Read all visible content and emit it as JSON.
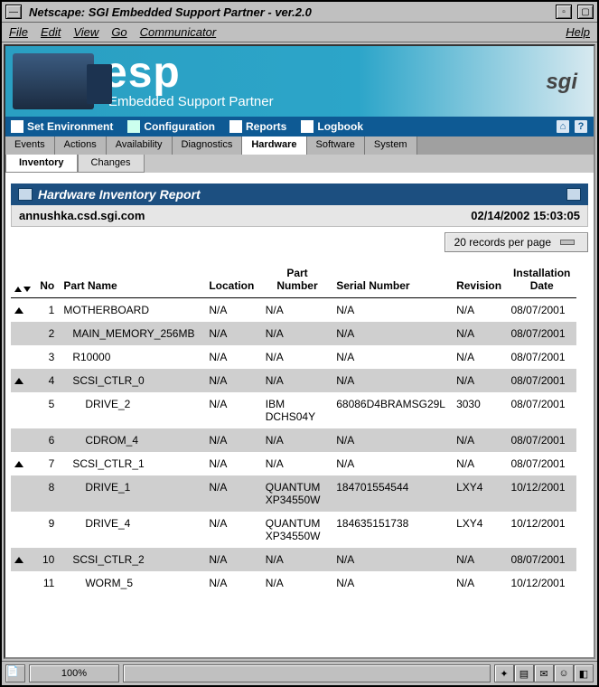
{
  "window": {
    "title": "Netscape: SGI Embedded Support Partner - ver.2.0"
  },
  "menubar": {
    "items": [
      "File",
      "Edit",
      "View",
      "Go",
      "Communicator"
    ],
    "help": "Help"
  },
  "banner": {
    "brand_big": "esp",
    "brand_sub": "Embedded Support Partner",
    "vendor": "sgi"
  },
  "toolbar": {
    "set_env": "Set Environment",
    "config": "Configuration",
    "reports": "Reports",
    "logbook": "Logbook"
  },
  "tabs": {
    "row1": [
      "Events",
      "Actions",
      "Availability",
      "Diagnostics",
      "Hardware",
      "Software",
      "System"
    ],
    "row1_active": 4,
    "row2": [
      "Inventory",
      "Changes"
    ],
    "row2_active": 0
  },
  "report": {
    "title": "Hardware Inventory Report",
    "host": "annushka.csd.sgi.com",
    "timestamp": "02/14/2002 15:03:05",
    "pager": "20 records per page"
  },
  "table": {
    "columns": [
      "No",
      "Part Name",
      "Location",
      "Part Number",
      "Serial Number",
      "Revision",
      "Installation Date"
    ],
    "rows": [
      {
        "collapse": true,
        "no": "1",
        "part": "MOTHERBOARD",
        "indent": 0,
        "loc": "N/A",
        "pn": "N/A",
        "sn": "N/A",
        "rev": "N/A",
        "date": "08/07/2001",
        "cls": "white"
      },
      {
        "collapse": false,
        "no": "2",
        "part": "MAIN_MEMORY_256MB",
        "indent": 1,
        "loc": "N/A",
        "pn": "N/A",
        "sn": "N/A",
        "rev": "N/A",
        "date": "08/07/2001",
        "cls": "gray"
      },
      {
        "collapse": false,
        "no": "3",
        "part": "R10000",
        "indent": 1,
        "loc": "N/A",
        "pn": "N/A",
        "sn": "N/A",
        "rev": "N/A",
        "date": "08/07/2001",
        "cls": "white"
      },
      {
        "collapse": true,
        "no": "4",
        "part": "SCSI_CTLR_0",
        "indent": 1,
        "loc": "N/A",
        "pn": "N/A",
        "sn": "N/A",
        "rev": "N/A",
        "date": "08/07/2001",
        "cls": "gray"
      },
      {
        "collapse": false,
        "no": "5",
        "part": "DRIVE_2",
        "indent": 2,
        "loc": "N/A",
        "pn": "IBM DCHS04Y",
        "sn": "68086D4BRAMSG29L",
        "rev": "3030",
        "date": "08/07/2001",
        "cls": "white"
      },
      {
        "collapse": false,
        "no": "6",
        "part": "CDROM_4",
        "indent": 2,
        "loc": "N/A",
        "pn": "N/A",
        "sn": "N/A",
        "rev": "N/A",
        "date": "08/07/2001",
        "cls": "gray"
      },
      {
        "collapse": true,
        "no": "7",
        "part": "SCSI_CTLR_1",
        "indent": 1,
        "loc": "N/A",
        "pn": "N/A",
        "sn": "N/A",
        "rev": "N/A",
        "date": "08/07/2001",
        "cls": "white"
      },
      {
        "collapse": false,
        "no": "8",
        "part": "DRIVE_1",
        "indent": 2,
        "loc": "N/A",
        "pn": "QUANTUM XP34550W",
        "sn": "184701554544",
        "rev": "LXY4",
        "date": "10/12/2001",
        "cls": "gray"
      },
      {
        "collapse": false,
        "no": "9",
        "part": "DRIVE_4",
        "indent": 2,
        "loc": "N/A",
        "pn": "QUANTUM XP34550W",
        "sn": "184635151738",
        "rev": "LXY4",
        "date": "10/12/2001",
        "cls": "white"
      },
      {
        "collapse": true,
        "no": "10",
        "part": "SCSI_CTLR_2",
        "indent": 1,
        "loc": "N/A",
        "pn": "N/A",
        "sn": "N/A",
        "rev": "N/A",
        "date": "08/07/2001",
        "cls": "gray"
      },
      {
        "collapse": false,
        "no": "11",
        "part": "WORM_5",
        "indent": 2,
        "loc": "N/A",
        "pn": "N/A",
        "sn": "N/A",
        "rev": "N/A",
        "date": "10/12/2001",
        "cls": "white"
      }
    ]
  },
  "statusbar": {
    "percent": "100%"
  }
}
